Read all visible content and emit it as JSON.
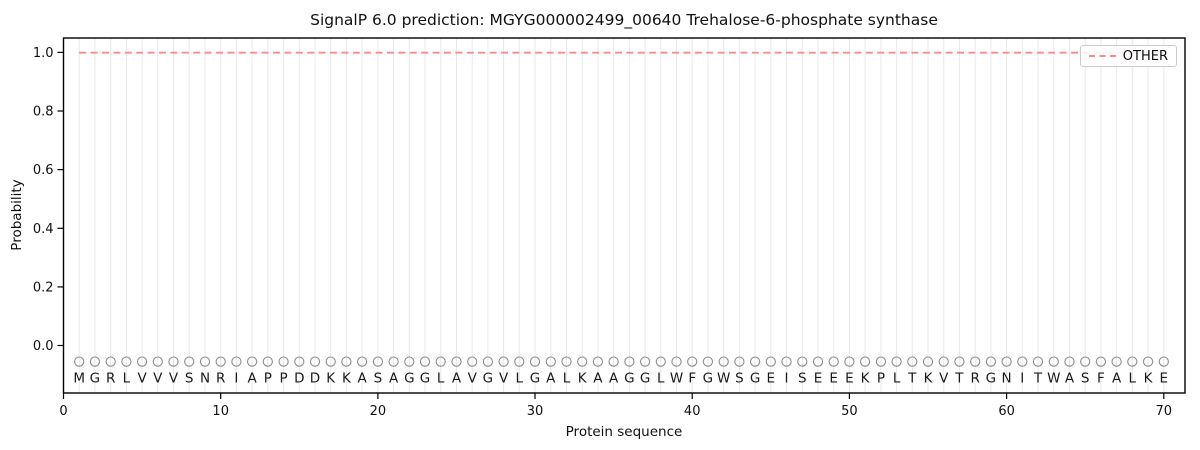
{
  "chart_data": {
    "type": "line",
    "title": "SignalP 6.0 prediction: MGYG000002499_00640 Trehalose-6-phosphate synthase",
    "xlabel": "Protein sequence",
    "ylabel": "Probability",
    "xlim": [
      0,
      71.35
    ],
    "ylim": [
      -0.162,
      1.049
    ],
    "xticks": {
      "values": [
        0,
        10,
        20,
        30,
        40,
        50,
        60,
        70
      ],
      "labels": [
        "0",
        "10",
        "20",
        "30",
        "40",
        "50",
        "60",
        "70"
      ]
    },
    "yticks": {
      "values": [
        0.0,
        0.2,
        0.4,
        0.6,
        0.8,
        1.0
      ],
      "labels": [
        "0.0",
        "0.2",
        "0.4",
        "0.6",
        "0.8",
        "1.0"
      ]
    },
    "grid": {
      "vertical_per_residue": true,
      "horizontal": false,
      "color": "#e8e8e8"
    },
    "legend": {
      "position": "upper right",
      "entries": [
        {
          "label": "OTHER",
          "color": "#f98b8b",
          "linestyle": "dashed"
        }
      ]
    },
    "sequence": "MGRLVVVSNRIAPPDDKKASAGGLAVGVLGALKAAGGLWFGWSGEISEEEKPLTKVTRGNITWASFALKE",
    "sequence_markers": {
      "shape": "open-circle",
      "y": -0.055,
      "color": "#8c8c8c"
    },
    "sequence_letters": {
      "y": -0.11,
      "color": "#1a1a1a"
    },
    "series": [
      {
        "name": "OTHER",
        "color": "#f98b8b",
        "linestyle": "dashed",
        "x_start": 1,
        "values": [
          0.999,
          0.999,
          0.999,
          0.999,
          0.999,
          0.999,
          0.999,
          0.999,
          0.999,
          0.999,
          0.999,
          0.999,
          0.999,
          0.999,
          0.999,
          0.999,
          0.999,
          0.999,
          0.999,
          0.999,
          0.999,
          0.999,
          0.999,
          0.999,
          0.999,
          0.999,
          0.999,
          0.999,
          0.999,
          0.999,
          0.999,
          0.999,
          0.999,
          0.999,
          0.999,
          0.999,
          0.999,
          0.999,
          0.999,
          0.999,
          0.999,
          0.999,
          0.999,
          0.999,
          0.999,
          0.999,
          0.999,
          0.999,
          0.999,
          0.999,
          0.999,
          0.999,
          0.999,
          0.999,
          0.999,
          0.999,
          0.999,
          0.999,
          0.999,
          0.999,
          0.999,
          0.999,
          0.999,
          0.999,
          0.999,
          0.999,
          0.999,
          0.999,
          0.999,
          0.999
        ]
      }
    ]
  }
}
